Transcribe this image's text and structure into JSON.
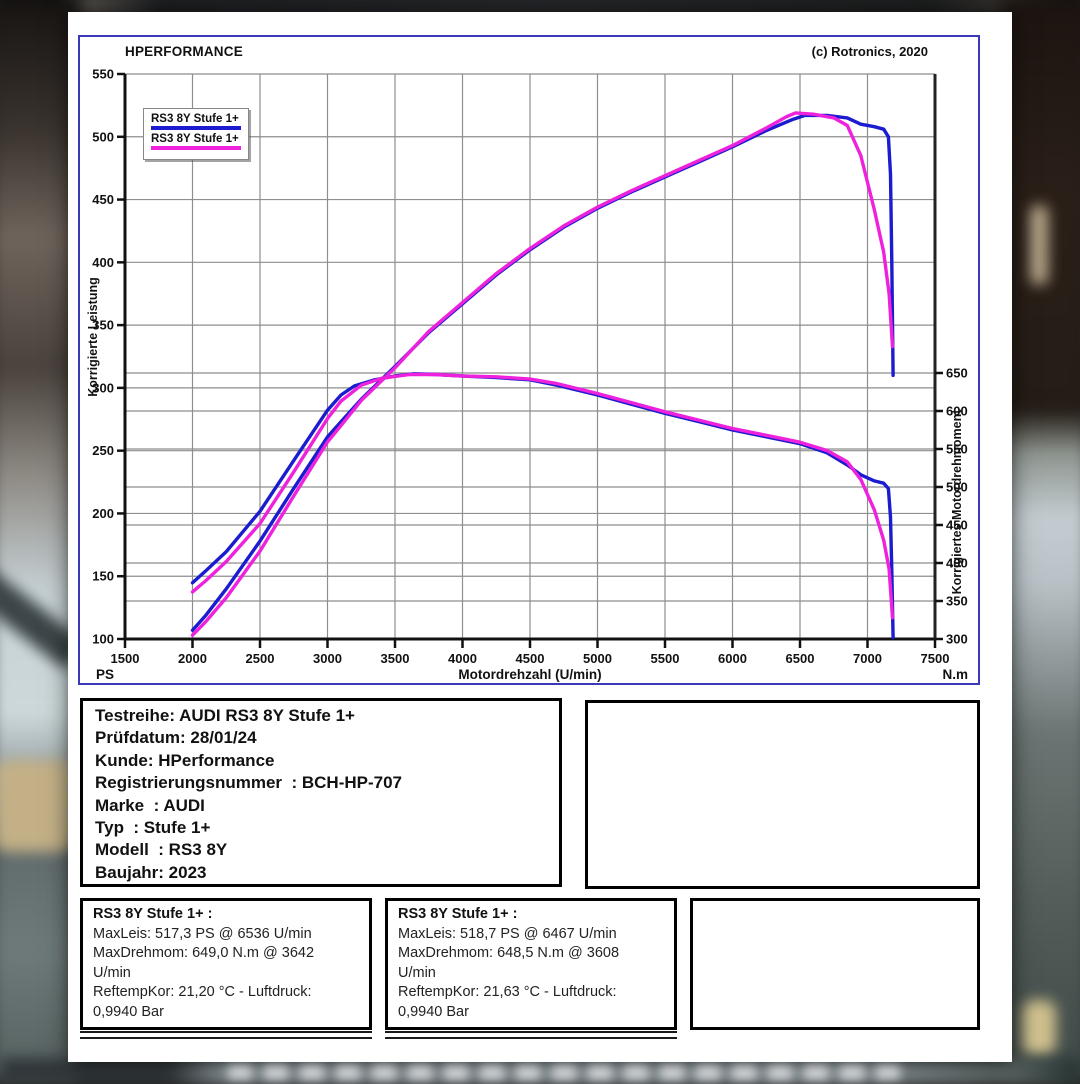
{
  "chart": {
    "title": "HPERFORMANCE",
    "copyright": "(c) Rotronics, 2020",
    "legend": [
      {
        "label": "RS3 8Y Stufe 1+",
        "color": "#1b1bd0"
      },
      {
        "label": "RS3 8Y Stufe 1+",
        "color": "#ee22dd"
      }
    ]
  },
  "chart_data": {
    "type": "line",
    "title": "HPERFORMANCE",
    "copyright": "(c) Rotronics, 2020",
    "xlabel": "Motordrehzahl (U/min)",
    "x_range": [
      1500,
      7500
    ],
    "x_ticks": [
      1500,
      2000,
      2500,
      3000,
      3500,
      4000,
      4500,
      5000,
      5500,
      6000,
      6500,
      7000,
      7500
    ],
    "left_axis": {
      "label": "Korrigierte Leistung",
      "unit": "PS",
      "range": [
        100,
        550
      ],
      "ticks": [
        100,
        150,
        200,
        250,
        300,
        350,
        400,
        450,
        500,
        550
      ]
    },
    "right_axis": {
      "label": "Korrigiertes Motordrehmoment",
      "unit": "N.m",
      "range_at_ticks": [
        300,
        650
      ],
      "ticks": [
        300,
        350,
        400,
        450,
        500,
        550,
        600,
        650
      ]
    },
    "grid": true,
    "legend_position": "upper-left",
    "series": [
      {
        "name": "RS3 8Y Stufe 1+",
        "run": 1,
        "measure": "Leistung",
        "unit": "PS",
        "axis": "left",
        "color": "#1b1bd0",
        "points": [
          [
            2000,
            107
          ],
          [
            2100,
            119
          ],
          [
            2250,
            140
          ],
          [
            2500,
            178
          ],
          [
            2750,
            220
          ],
          [
            3000,
            261
          ],
          [
            3100,
            273
          ],
          [
            3250,
            291
          ],
          [
            3500,
            317
          ],
          [
            3750,
            344
          ],
          [
            4000,
            367
          ],
          [
            4250,
            390
          ],
          [
            4500,
            410
          ],
          [
            4750,
            428
          ],
          [
            5000,
            443
          ],
          [
            5250,
            456
          ],
          [
            5500,
            468
          ],
          [
            5750,
            480
          ],
          [
            6000,
            492
          ],
          [
            6250,
            505
          ],
          [
            6450,
            514
          ],
          [
            6536,
            517
          ],
          [
            6700,
            517
          ],
          [
            6850,
            515
          ],
          [
            6950,
            510
          ],
          [
            7050,
            508
          ],
          [
            7120,
            506
          ],
          [
            7155,
            500
          ],
          [
            7170,
            470
          ],
          [
            7180,
            400
          ],
          [
            7190,
            310
          ]
        ]
      },
      {
        "name": "RS3 8Y Stufe 1+",
        "run": 1,
        "measure": "Drehmoment",
        "unit": "N.m",
        "axis": "right",
        "color": "#1b1bd0",
        "points": [
          [
            2000,
            374
          ],
          [
            2100,
            390
          ],
          [
            2250,
            415
          ],
          [
            2500,
            468
          ],
          [
            2750,
            535
          ],
          [
            3000,
            601
          ],
          [
            3100,
            621
          ],
          [
            3200,
            633
          ],
          [
            3350,
            641
          ],
          [
            3500,
            646
          ],
          [
            3642,
            649
          ],
          [
            3800,
            648
          ],
          [
            4000,
            646
          ],
          [
            4250,
            644
          ],
          [
            4500,
            641
          ],
          [
            4700,
            634
          ],
          [
            5000,
            621
          ],
          [
            5250,
            609
          ],
          [
            5500,
            597
          ],
          [
            5750,
            586
          ],
          [
            6000,
            575
          ],
          [
            6250,
            566
          ],
          [
            6500,
            557
          ],
          [
            6700,
            545
          ],
          [
            6850,
            529
          ],
          [
            6950,
            516
          ],
          [
            7050,
            508
          ],
          [
            7120,
            505
          ],
          [
            7155,
            498
          ],
          [
            7170,
            460
          ],
          [
            7180,
            390
          ],
          [
            7190,
            302
          ]
        ]
      },
      {
        "name": "RS3 8Y Stufe 1+",
        "run": 2,
        "measure": "Leistung",
        "unit": "PS",
        "axis": "left",
        "color": "#ee22dd",
        "points": [
          [
            2000,
            103
          ],
          [
            2100,
            114
          ],
          [
            2250,
            133
          ],
          [
            2500,
            170
          ],
          [
            2750,
            214
          ],
          [
            3000,
            257
          ],
          [
            3100,
            270
          ],
          [
            3250,
            290
          ],
          [
            3500,
            316
          ],
          [
            3750,
            345
          ],
          [
            4000,
            368
          ],
          [
            4250,
            391
          ],
          [
            4500,
            411
          ],
          [
            4750,
            429
          ],
          [
            5000,
            444
          ],
          [
            5250,
            457
          ],
          [
            5500,
            469
          ],
          [
            5750,
            481
          ],
          [
            6000,
            493
          ],
          [
            6250,
            507
          ],
          [
            6400,
            516
          ],
          [
            6467,
            519
          ],
          [
            6600,
            518
          ],
          [
            6750,
            515
          ],
          [
            6850,
            509
          ],
          [
            6950,
            485
          ],
          [
            7050,
            442
          ],
          [
            7120,
            408
          ],
          [
            7160,
            375
          ],
          [
            7185,
            333
          ]
        ]
      },
      {
        "name": "RS3 8Y Stufe 1+",
        "run": 2,
        "measure": "Drehmoment",
        "unit": "N.m",
        "axis": "right",
        "color": "#ee22dd",
        "points": [
          [
            2000,
            362
          ],
          [
            2100,
            377
          ],
          [
            2250,
            402
          ],
          [
            2500,
            452
          ],
          [
            2750,
            520
          ],
          [
            3000,
            590
          ],
          [
            3100,
            613
          ],
          [
            3250,
            634
          ],
          [
            3400,
            643
          ],
          [
            3608,
            648
          ],
          [
            3800,
            648
          ],
          [
            4000,
            646
          ],
          [
            4250,
            645
          ],
          [
            4500,
            642
          ],
          [
            4700,
            636
          ],
          [
            5000,
            623
          ],
          [
            5250,
            611
          ],
          [
            5500,
            599
          ],
          [
            5750,
            588
          ],
          [
            6000,
            577
          ],
          [
            6250,
            568
          ],
          [
            6500,
            559
          ],
          [
            6700,
            548
          ],
          [
            6850,
            533
          ],
          [
            6950,
            510
          ],
          [
            7050,
            470
          ],
          [
            7120,
            430
          ],
          [
            7160,
            392
          ],
          [
            7185,
            328
          ]
        ]
      }
    ]
  },
  "info_box": {
    "lines": [
      "Testreihe: AUDI RS3 8Y Stufe 1+",
      "Prüfdatum: 28/01/24",
      "Kunde: HPerformance",
      "Registrierungsnummer  : BCH-HP-707",
      "Marke  : AUDI",
      "Typ  : Stufe 1+",
      "Modell  : RS3 8Y",
      "Baujahr: 2023"
    ]
  },
  "result_boxes": [
    {
      "title": "RS3 8Y Stufe 1+ :",
      "lines": [
        "MaxLeis: 517,3 PS @ 6536 U/min",
        "MaxDrehmom: 649,0 N.m @ 3642",
        "U/min",
        "ReftempKor: 21,20 °C - Luftdruck:",
        "0,9940 Bar"
      ]
    },
    {
      "title": "RS3 8Y Stufe 1+ :",
      "lines": [
        "MaxLeis: 518,7 PS @ 6467 U/min",
        "MaxDrehmom: 648,5 N.m @ 3608",
        "U/min",
        "ReftempKor: 21,63 °C - Luftdruck:",
        "0,9940 Bar"
      ]
    }
  ]
}
